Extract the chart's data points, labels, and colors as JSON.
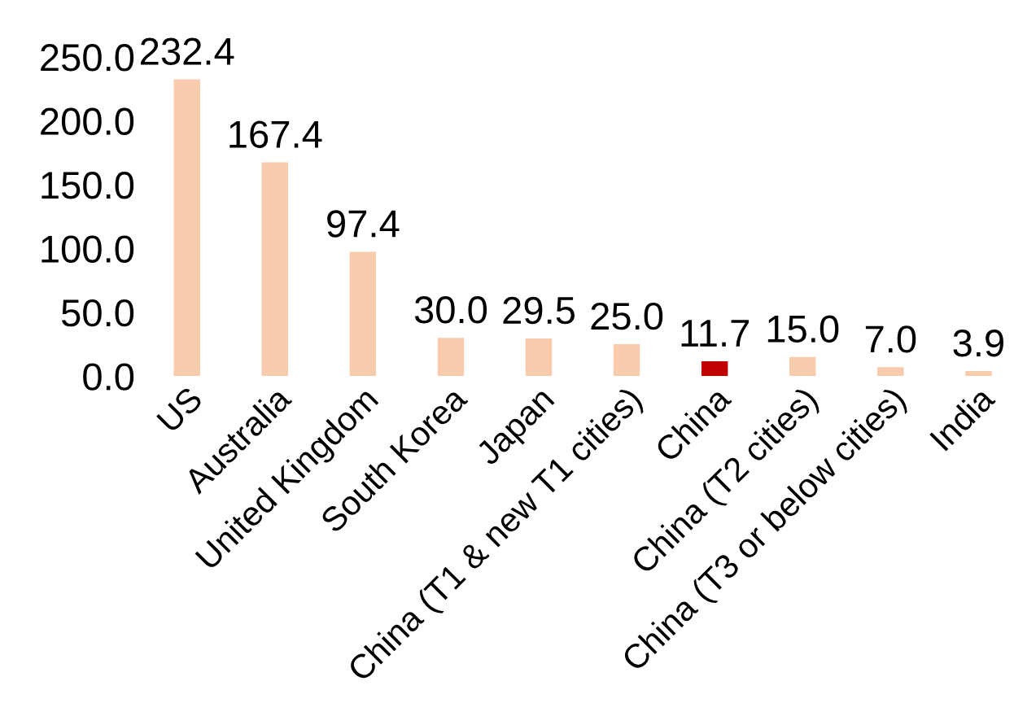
{
  "chart_data": {
    "type": "bar",
    "categories": [
      "US",
      "Australia",
      "United Kingdom",
      "South Korea",
      "Japan",
      "China (T1 & new T1 cities)",
      "China",
      "China (T2 cities)",
      "China (T3 or below cities)",
      "India"
    ],
    "values": [
      232.4,
      167.4,
      97.4,
      30.0,
      29.5,
      25.0,
      11.7,
      15.0,
      7.0,
      3.9
    ],
    "value_labels": [
      "232.4",
      "167.4",
      "97.4",
      "30.0",
      "29.5",
      "25.0",
      "11.7",
      "15.0",
      "7.0",
      "3.9"
    ],
    "colors": [
      "#f8cbad",
      "#f8cbad",
      "#f8cbad",
      "#f8cbad",
      "#f8cbad",
      "#f8cbad",
      "#c00000",
      "#f8cbad",
      "#f8cbad",
      "#f8cbad"
    ],
    "ylim": [
      0,
      250
    ],
    "yticks": [
      {
        "value": 0,
        "label": "0.0"
      },
      {
        "value": 50,
        "label": "50.0"
      },
      {
        "value": 100,
        "label": "100.0"
      },
      {
        "value": 150,
        "label": "150.0"
      },
      {
        "value": 200,
        "label": "200.0"
      },
      {
        "value": 250,
        "label": "250.0"
      }
    ],
    "grid": false,
    "legend": false
  }
}
